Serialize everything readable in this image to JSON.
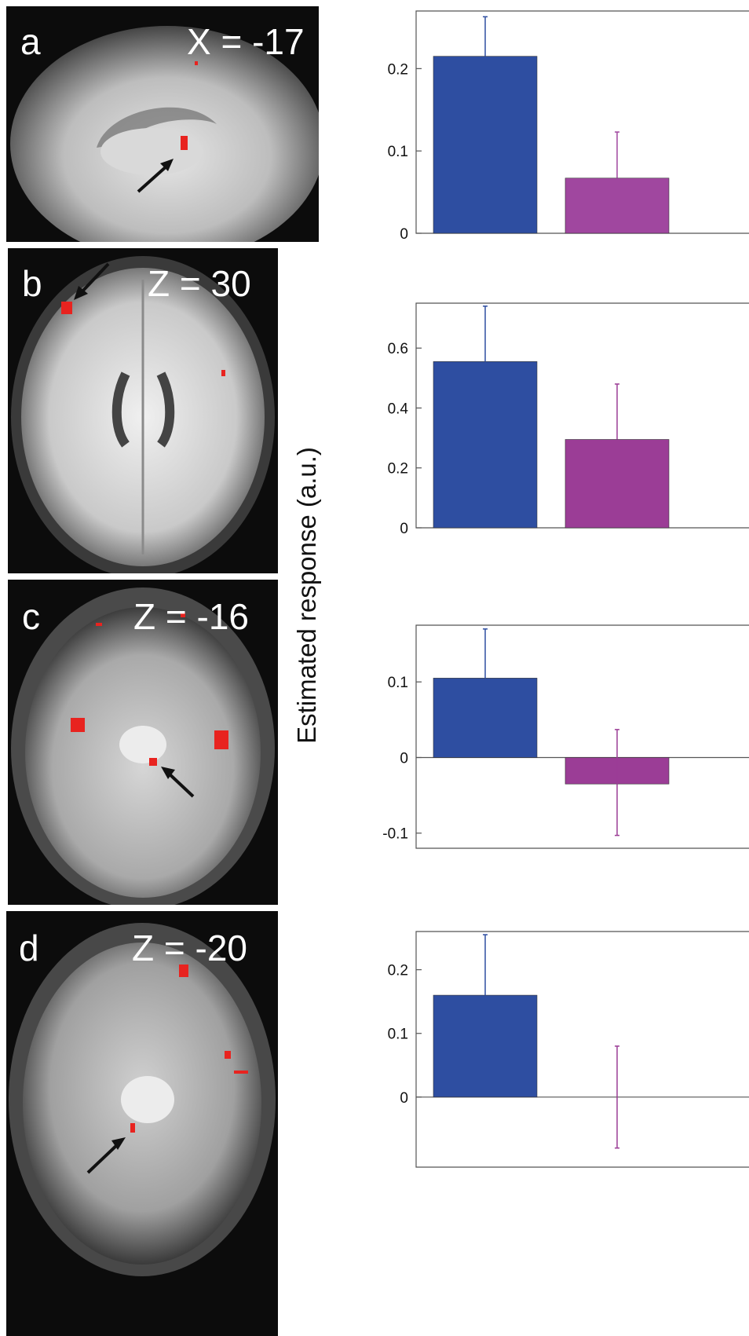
{
  "colors": {
    "bar_blue": "#2e4ea1",
    "bar_magenta": "#9b3d96",
    "cluster_red": "#e8231f",
    "arrow": "#111111"
  },
  "y_axis_label": "Estimated response  (a.u.)",
  "panels": [
    {
      "letter": "a",
      "coord": "X = -17",
      "view": "sagittal"
    },
    {
      "letter": "b",
      "coord": "Z = 30",
      "view": "axial-superior"
    },
    {
      "letter": "c",
      "coord": "Z = -16",
      "view": "axial-inferior"
    },
    {
      "letter": "d",
      "coord": "Z = -20",
      "view": "axial-inferior"
    }
  ],
  "chart_data": [
    {
      "type": "bar",
      "categories": [
        "",
        ""
      ],
      "values": [
        0.215,
        0.067
      ],
      "error_up": [
        0.263,
        0.123
      ],
      "error_down": [
        null,
        null
      ],
      "ylim": [
        0,
        0.27
      ],
      "yticks": [
        0,
        0.1,
        0.2
      ],
      "ytick_labels": [
        "0",
        "0.1",
        "0.2"
      ],
      "colors": [
        "#2e4ea1",
        "#a0479f"
      ],
      "ylabel": "Estimated response  (a.u.)"
    },
    {
      "type": "bar",
      "categories": [
        "",
        ""
      ],
      "values": [
        0.555,
        0.295
      ],
      "error_up": [
        0.74,
        0.48
      ],
      "error_down": [
        null,
        null
      ],
      "ylim": [
        0,
        0.75
      ],
      "yticks": [
        0,
        0.2,
        0.4,
        0.6
      ],
      "ytick_labels": [
        "0",
        "0.2",
        "0.4",
        "0.6"
      ],
      "colors": [
        "#2e4ea1",
        "#9b3d96"
      ],
      "ylabel": "Estimated response  (a.u.)"
    },
    {
      "type": "bar",
      "categories": [
        "",
        ""
      ],
      "values": [
        0.105,
        -0.035
      ],
      "error_up": [
        0.17,
        null
      ],
      "error_down": [
        null,
        -0.103
      ],
      "error_magenta_up": 0.037,
      "ylim": [
        -0.12,
        0.175
      ],
      "yticks": [
        -0.1,
        0,
        0.1
      ],
      "ytick_labels": [
        "-0.1",
        "0",
        "0.1"
      ],
      "colors": [
        "#2e4ea1",
        "#9b3d96"
      ],
      "ylabel": "Estimated response  (a.u.)"
    },
    {
      "type": "bar",
      "categories": [
        "",
        ""
      ],
      "values": [
        0.16,
        0.0
      ],
      "error_up": [
        0.255,
        0.08
      ],
      "error_down": [
        null,
        -0.08
      ],
      "ylim": [
        -0.11,
        0.26
      ],
      "yticks": [
        0,
        0.1,
        0.2
      ],
      "ytick_labels": [
        "0",
        "0.1",
        "0.2"
      ],
      "colors": [
        "#2e4ea1",
        "#9b3d96"
      ],
      "ylabel": "Estimated response  (a.u.)"
    }
  ]
}
